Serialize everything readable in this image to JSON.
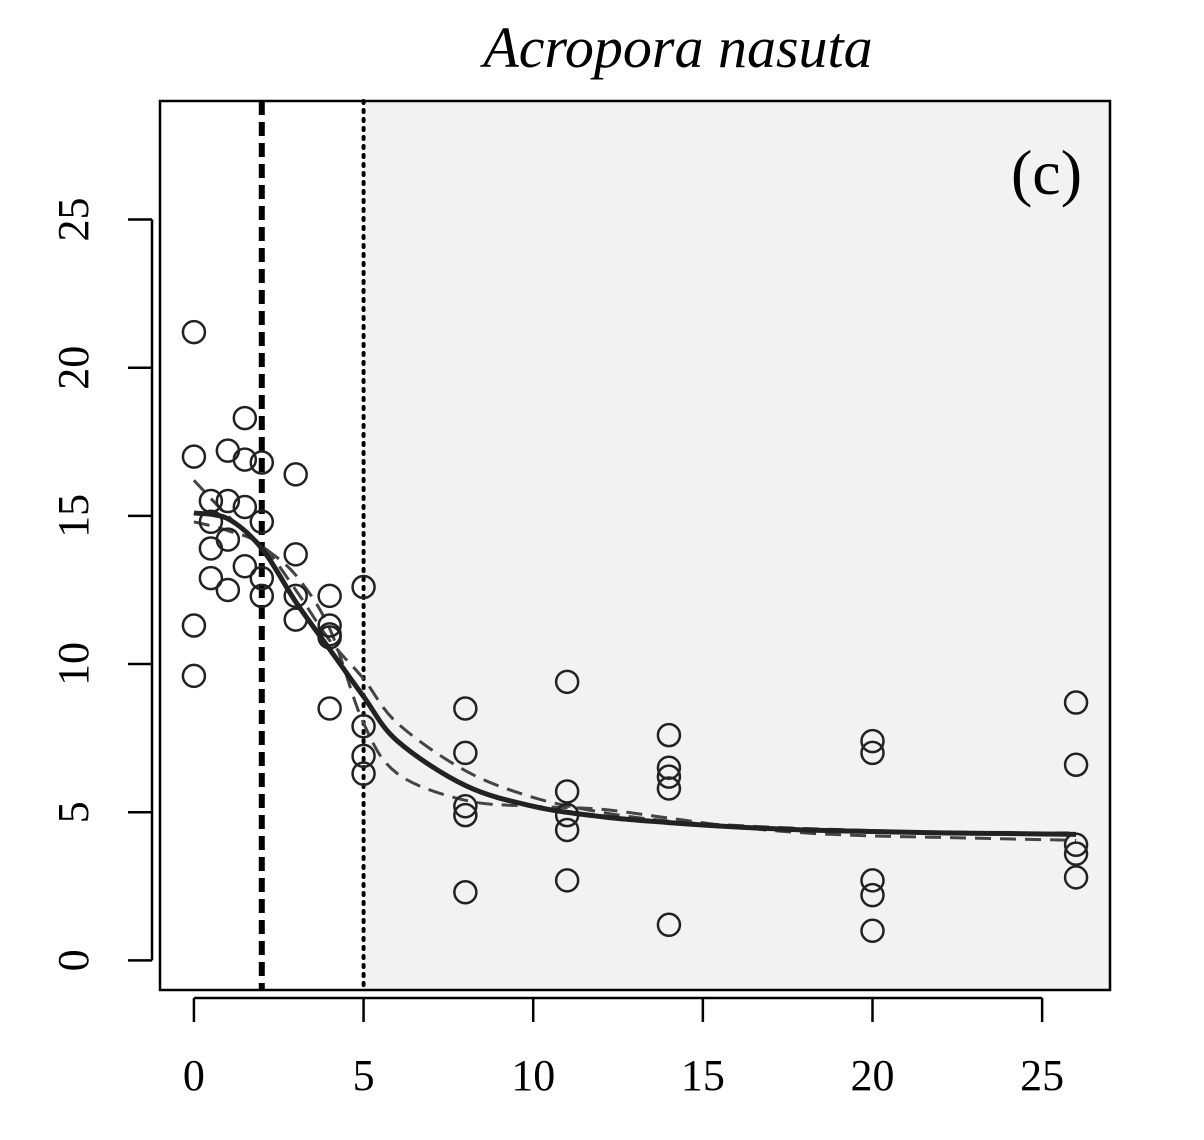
{
  "chart_data": {
    "type": "scatter",
    "title": "Acropora nasuta",
    "panel_label": "(c)",
    "xlabel": "",
    "ylabel": "",
    "xlim": [
      -1,
      27
    ],
    "ylim": [
      -1,
      29
    ],
    "x_ticks": [
      0,
      5,
      10,
      15,
      20,
      25
    ],
    "y_ticks": [
      0,
      5,
      10,
      15,
      20,
      25
    ],
    "x_tick_labels": [
      "0",
      "5",
      "10",
      "15",
      "20",
      "25"
    ],
    "y_tick_labels": [
      "0",
      "5",
      "10",
      "15",
      "20",
      "25"
    ],
    "grid": false,
    "shaded_region": {
      "x_from": 5,
      "x_to": 27,
      "color": "#f2f2f2"
    },
    "vertical_lines": [
      {
        "x": 2,
        "style": "dashed"
      },
      {
        "x": 5,
        "style": "dotted"
      }
    ],
    "points": [
      [
        0,
        21.2
      ],
      [
        0,
        17.0
      ],
      [
        0,
        11.3
      ],
      [
        0,
        9.6
      ],
      [
        0.5,
        15.5
      ],
      [
        0.5,
        14.8
      ],
      [
        0.5,
        13.9
      ],
      [
        0.5,
        12.9
      ],
      [
        1,
        17.2
      ],
      [
        1,
        15.5
      ],
      [
        1,
        14.2
      ],
      [
        1,
        12.5
      ],
      [
        1.5,
        18.3
      ],
      [
        1.5,
        16.9
      ],
      [
        1.5,
        15.3
      ],
      [
        1.5,
        13.3
      ],
      [
        2,
        16.8
      ],
      [
        2,
        14.8
      ],
      [
        2,
        12.9
      ],
      [
        2,
        12.3
      ],
      [
        3,
        16.4
      ],
      [
        3,
        13.7
      ],
      [
        3,
        12.3
      ],
      [
        3,
        11.5
      ],
      [
        4,
        12.3
      ],
      [
        4,
        11.3
      ],
      [
        4,
        11.0
      ],
      [
        4,
        10.9
      ],
      [
        4,
        8.5
      ],
      [
        5,
        12.6
      ],
      [
        5,
        7.9
      ],
      [
        5,
        6.9
      ],
      [
        5,
        6.3
      ],
      [
        8,
        8.5
      ],
      [
        8,
        7.0
      ],
      [
        8,
        5.2
      ],
      [
        8,
        4.9
      ],
      [
        8,
        2.3
      ],
      [
        11,
        9.4
      ],
      [
        11,
        5.7
      ],
      [
        11,
        4.9
      ],
      [
        11,
        4.4
      ],
      [
        11,
        2.7
      ],
      [
        14,
        7.6
      ],
      [
        14,
        6.5
      ],
      [
        14,
        6.2
      ],
      [
        14,
        5.8
      ],
      [
        14,
        1.2
      ],
      [
        20,
        7.4
      ],
      [
        20,
        7.0
      ],
      [
        20,
        2.7
      ],
      [
        20,
        2.2
      ],
      [
        20,
        1.0
      ],
      [
        26,
        8.7
      ],
      [
        26,
        6.6
      ],
      [
        26,
        3.9
      ],
      [
        26,
        3.6
      ],
      [
        26,
        2.8
      ]
    ],
    "series": [
      {
        "style": "solid",
        "x": [
          0,
          1,
          2,
          3,
          4,
          5,
          6,
          8,
          10,
          12,
          14,
          16,
          18,
          20,
          22,
          24,
          26
        ],
        "y": [
          15.1,
          14.9,
          13.9,
          12.1,
          10.5,
          8.9,
          7.4,
          5.9,
          5.2,
          4.85,
          4.65,
          4.5,
          4.4,
          4.35,
          4.3,
          4.28,
          4.25
        ]
      },
      {
        "style": "dashed",
        "x": [
          0,
          1,
          2,
          3,
          4,
          5,
          6,
          8,
          10,
          12,
          14,
          16,
          18,
          20,
          22,
          24,
          26
        ],
        "y": [
          16.2,
          15.0,
          14.0,
          13.0,
          11.2,
          8.0,
          6.3,
          5.4,
          5.2,
          5.1,
          4.8,
          4.5,
          4.3,
          4.2,
          4.15,
          4.1,
          4.05
        ]
      },
      {
        "style": "dashed",
        "x": [
          0,
          1,
          2,
          3,
          4,
          5,
          6,
          8,
          10,
          12,
          14,
          16,
          18,
          20,
          22,
          24,
          26
        ],
        "y": [
          14.8,
          14.5,
          14.0,
          12.5,
          10.8,
          9.5,
          8.0,
          6.4,
          5.5,
          5.0,
          4.7,
          4.55,
          4.45,
          4.38,
          4.33,
          4.3,
          4.3
        ]
      }
    ]
  }
}
